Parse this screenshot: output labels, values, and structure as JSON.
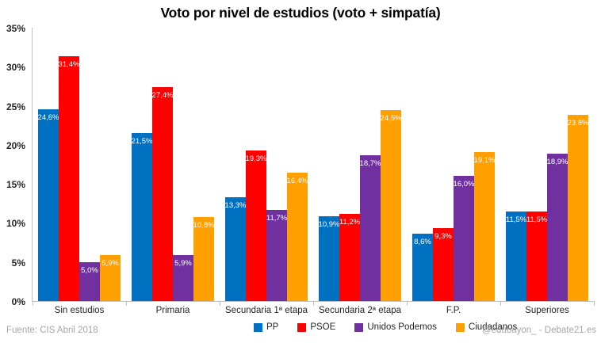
{
  "title": "Voto por nivel de estudios (voto + simpatía)",
  "footer": {
    "source": "Fuente: CIS Abril 2018",
    "credit": "@edubayon_ - Debate21.es"
  },
  "colors": {
    "axis": "#BFBFBF",
    "footer_text": "#A6A6A6",
    "label_text": "#262626",
    "bar_value_text": "#FFFFFF"
  },
  "chart_data": {
    "type": "bar",
    "title": "Voto por nivel de estudios (voto + simpatía)",
    "xlabel": "",
    "ylabel": "",
    "ylim": [
      0,
      35
    ],
    "yticks": [
      "0%",
      "5%",
      "10%",
      "15%",
      "20%",
      "25%",
      "30%",
      "35%"
    ],
    "grid": false,
    "legend_position": "bottom",
    "categories": [
      "Sin estudios",
      "Primaria",
      "Secundaria 1ª etapa",
      "Secundaria 2ª etapa",
      "F.P.",
      "Superiores"
    ],
    "series": [
      {
        "name": "PP",
        "color": "#0070C0",
        "values": [
          24.6,
          21.5,
          13.3,
          10.9,
          8.6,
          11.5
        ],
        "labels": [
          "24,6%",
          "21,5%",
          "13,3%",
          "10,9%",
          "8,6%",
          "11,5%"
        ]
      },
      {
        "name": "PSOE",
        "color": "#FF0000",
        "values": [
          31.4,
          27.4,
          19.3,
          11.2,
          9.3,
          11.5
        ],
        "labels": [
          "31,4%",
          "27,4%",
          "19,3%",
          "11,2%",
          "9,3%",
          "11,5%"
        ]
      },
      {
        "name": "Unidos Podemos",
        "color": "#7030A0",
        "values": [
          5.0,
          5.9,
          11.7,
          18.7,
          16.0,
          18.9
        ],
        "labels": [
          "5,0%",
          "5,9%",
          "11,7%",
          "18,7%",
          "16,0%",
          "18,9%"
        ]
      },
      {
        "name": "Ciudadanos",
        "color": "#FFA000",
        "values": [
          5.9,
          10.8,
          16.4,
          24.5,
          19.1,
          23.8
        ],
        "labels": [
          "5,9%",
          "10,8%",
          "16,4%",
          "24,5%",
          "19,1%",
          "23,8%"
        ]
      }
    ]
  }
}
